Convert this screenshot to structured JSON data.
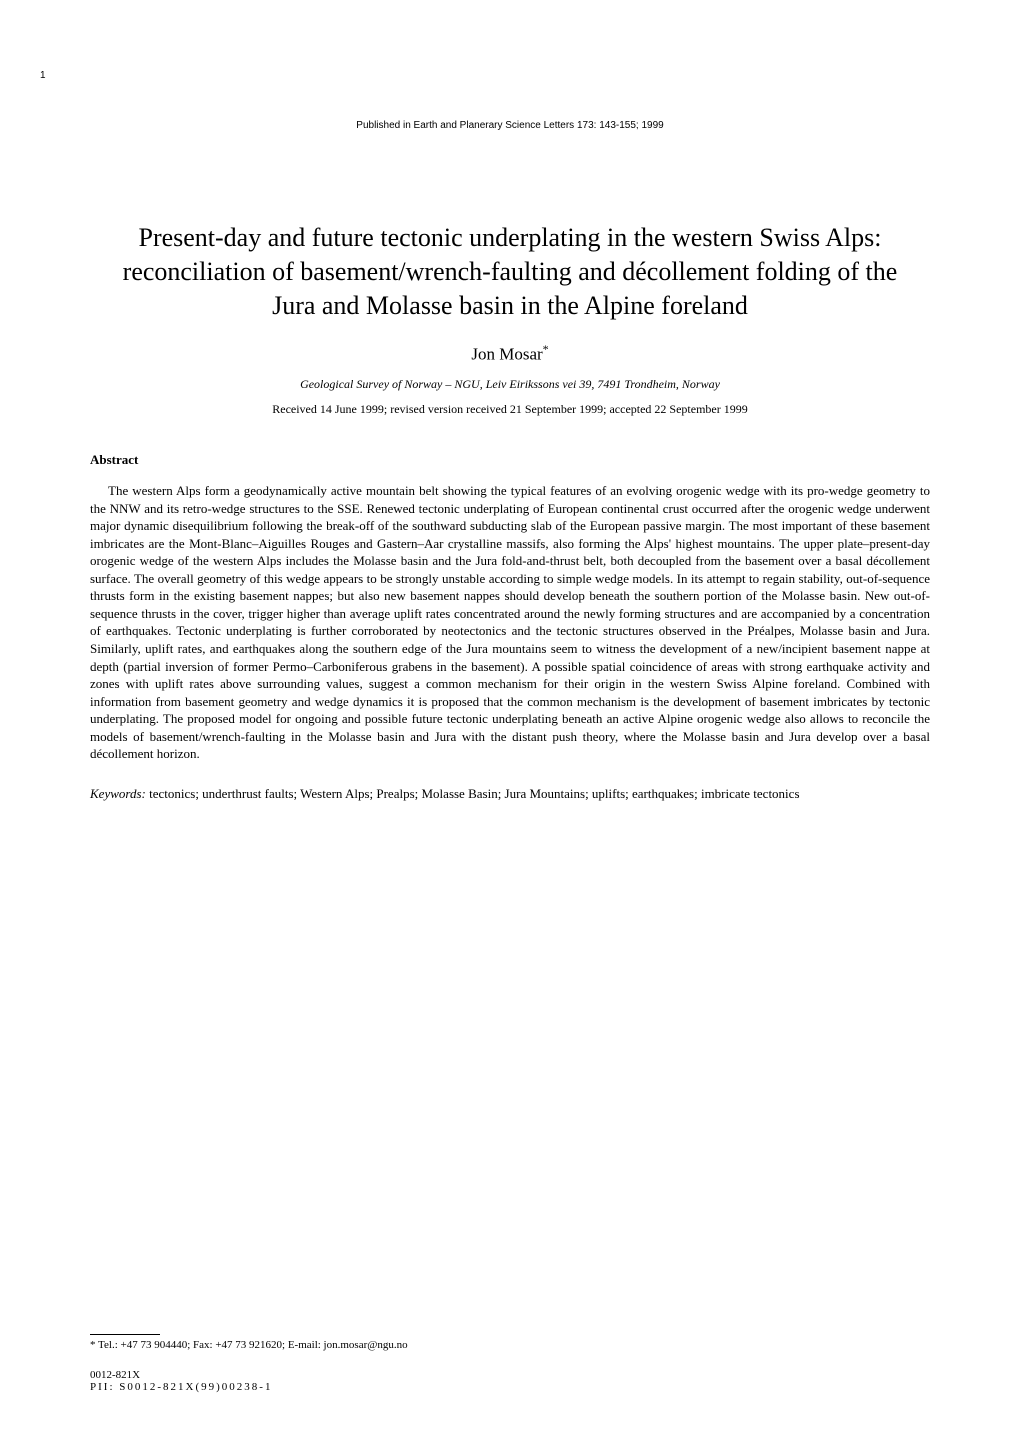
{
  "page_number": "1",
  "publication_info": "Published in Earth and Planerary Science Letters 173: 143-155; 1999",
  "title": "Present-day and future tectonic underplating in the western Swiss Alps: reconciliation of basement/wrench-faulting and décollement folding of the Jura and Molasse basin in the Alpine foreland",
  "author": "Jon Mosar",
  "author_marker": "*",
  "affiliation": "Geological Survey of Norway – NGU, Leiv Eirikssons vei 39, 7491 Trondheim, Norway",
  "dates": "Received 14 June 1999; revised version received 21 September 1999; accepted 22 September 1999",
  "abstract_heading": "Abstract",
  "abstract_body": "The western Alps form a geodynamically active mountain belt showing the typical features of an evolving orogenic wedge with its pro-wedge geometry to the NNW and its retro-wedge structures to the SSE. Renewed tectonic underplating of European continental crust occurred after the orogenic wedge underwent major dynamic disequilibrium following the break-off of the southward subducting slab of the European passive margin. The most important of these basement imbricates are the Mont-Blanc–Aiguilles Rouges and Gastern–Aar crystalline massifs, also forming the Alps' highest mountains. The upper plate–present-day orogenic wedge of the western Alps includes the Molasse basin and the Jura fold-and-thrust belt, both decoupled from the basement over a basal décollement surface. The overall geometry of this wedge appears to be strongly unstable according to simple wedge models. In its attempt to regain stability, out-of-sequence thrusts form in the existing basement nappes; but also new basement nappes should develop beneath the southern portion of the Molasse basin. New out-of-sequence thrusts in the cover, trigger higher than average uplift rates concentrated around the newly forming structures and are accompanied by a concentration of earthquakes. Tectonic underplating is further corroborated by neotectonics and the tectonic structures observed in the Préalpes, Molasse basin and Jura. Similarly, uplift rates, and earthquakes along the southern edge of the Jura mountains seem to witness the development of a new/incipient basement nappe at depth (partial inversion of former Permo–Carboniferous grabens in the basement). A possible spatial coincidence of areas with strong earthquake activity and zones with uplift rates above surrounding values, suggest a common mechanism for their origin in the western Swiss Alpine foreland. Combined with information from basement geometry and wedge dynamics it is proposed that the common mechanism is the development of basement imbricates by tectonic underplating. The proposed model for ongoing and possible future tectonic underplating beneath an active Alpine orogenic wedge also allows to reconcile the models of basement/wrench-faulting in the Molasse basin and Jura with the distant push theory, where the Molasse basin and Jura develop over a basal décollement horizon.",
  "keywords_label": "Keywords:",
  "keywords_text": " tectonics; underthrust faults; Western Alps; Prealps; Molasse Basin; Jura Mountains; uplifts; earthquakes; imbricate tectonics",
  "footnote": "* Tel.: +47 73 904440; Fax: +47 73 921620; E-mail: jon.mosar@ngu.no",
  "issn": "0012-821X",
  "pii": "PII: S0012-821X(99)00238-1",
  "colors": {
    "background": "#ffffff",
    "text": "#000000"
  },
  "typography": {
    "body_font": "Times New Roman",
    "title_fontsize": 26,
    "author_fontsize": 17,
    "body_fontsize": 13,
    "small_fontsize": 11,
    "publication_fontsize": 10
  }
}
